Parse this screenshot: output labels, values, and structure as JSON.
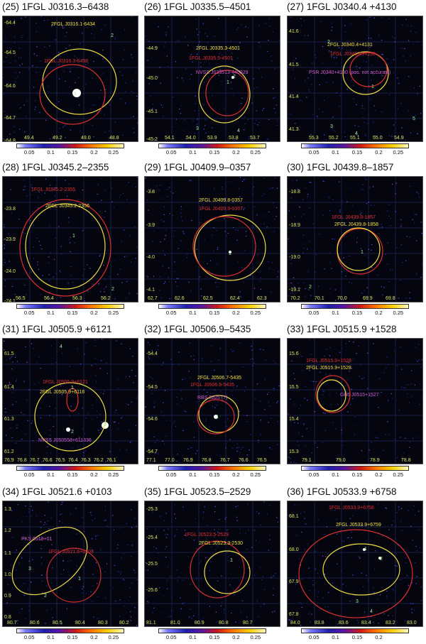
{
  "panels": [
    {
      "title": "(25) 1FGL J0316.3–6438",
      "labels": [
        {
          "text": "2FGL J0316.1-6434",
          "color": "#f0e040"
        },
        {
          "text": "1FGL J0316.3-6438",
          "color": "#e03030"
        }
      ],
      "y_ticks": [
        "-64.4",
        "-64.5",
        "-64.6",
        "-64.7",
        "-64.8"
      ],
      "x_ticks": [
        "49.4",
        "49.2",
        "49.0",
        "48.8"
      ],
      "scale_labels": [
        "0.05",
        "0.1",
        "0.15",
        "0.2",
        "0.25"
      ],
      "source_numbers": [
        "1",
        "2"
      ]
    },
    {
      "title": "(26) 1FGL J0335.5–4501",
      "labels": [
        {
          "text": "2FGL J0335.3-4501",
          "color": "#f0e040"
        },
        {
          "text": "1FGL J0335.5-4501",
          "color": "#e03030"
        },
        {
          "text": "NVSS J033513-445929",
          "color": "#d060d0"
        }
      ],
      "y_ticks": [
        "-44.9",
        "-45.0",
        "-45.1",
        "-45.2"
      ],
      "x_ticks": [
        "54.1",
        "54.0",
        "53.9",
        "53.8",
        "53.7"
      ],
      "scale_labels": [
        "0.05",
        "0.1",
        "0.15",
        "0.2",
        "0.25"
      ],
      "source_numbers": [
        "1",
        "2",
        "3",
        "4"
      ]
    },
    {
      "title": "(27) 1FGL J0340.4 +4130",
      "labels": [
        {
          "text": "2FGL J0340.4+4131",
          "color": "#f0e040"
        },
        {
          "text": "1FGL J0340.4+4130",
          "color": "#e03030"
        },
        {
          "text": "PSR J0340+4130 (pos. not accurate)",
          "color": "#d060d0"
        }
      ],
      "y_ticks": [
        "41.6",
        "41.5",
        "41.4",
        "41.3"
      ],
      "x_ticks": [
        "55.3",
        "55.2",
        "55.1",
        "55.0",
        "54.9"
      ],
      "scale_labels": [
        "0.05",
        "0.1",
        "0.15",
        "0.2",
        "0.25"
      ],
      "source_numbers": [
        "2",
        "1",
        "3",
        "4",
        "5"
      ]
    },
    {
      "title": "(28) 1FGL J0345.2–2355",
      "labels": [
        {
          "text": "1FGL J0345.2-2355",
          "color": "#e03030"
        },
        {
          "text": "2FGL J0345.2-2356",
          "color": "#f0e040"
        }
      ],
      "y_ticks": [
        "-23.8",
        "-23.9",
        "-24.0",
        "-24.1"
      ],
      "x_ticks": [
        "56.5",
        "56.4",
        "56.3",
        "56.2"
      ],
      "scale_labels": [
        "0.05",
        "0.1",
        "0.15",
        "0.2",
        "0.25"
      ],
      "source_numbers": [
        "1",
        "2"
      ]
    },
    {
      "title": "(29) 1FGL J0409.9–0357",
      "labels": [
        {
          "text": "2FGL J0409.8-0357",
          "color": "#f0e040"
        },
        {
          "text": "1FGL J0409.9-0357",
          "color": "#e03030"
        }
      ],
      "y_ticks": [
        "-3.8",
        "-3.9",
        "-4.0",
        "-4.1"
      ],
      "x_ticks": [
        "62.7",
        "62.6",
        "62.5",
        "62.4",
        "62.3"
      ],
      "scale_labels": [
        "0.05",
        "0.1",
        "0.15",
        "0.2",
        "0.25"
      ],
      "source_numbers": [
        "1"
      ]
    },
    {
      "title": "(30) 1FGL J0439.8–1857",
      "labels": [
        {
          "text": "1FGL J0439.8-1857",
          "color": "#e03030"
        },
        {
          "text": "2FGL J0439.8-1858",
          "color": "#f0e040"
        }
      ],
      "y_ticks": [
        "-18.8",
        "-18.9",
        "-19.0",
        "-19.1"
      ],
      "x_ticks": [
        "70.2",
        "70.1",
        "70.0",
        "69.9",
        "69.8"
      ],
      "scale_labels": [
        "0.05",
        "0.1",
        "0.15",
        "0.2",
        "0.25"
      ],
      "source_numbers": [
        "1",
        "2"
      ]
    },
    {
      "title": "(31) 1FGL J0505.9 +6121",
      "labels": [
        {
          "text": "1FGL J0505.9+6121",
          "color": "#e03030"
        },
        {
          "text": "2FGL J0505.9+6116",
          "color": "#f0e040"
        },
        {
          "text": "NVSS J050558+611336",
          "color": "#d060d0"
        }
      ],
      "y_ticks": [
        "61.5",
        "61.4",
        "61.3",
        "61.2"
      ],
      "x_ticks": [
        "76.9",
        "76.8",
        "76.7",
        "76.6",
        "76.5",
        "76.4",
        "76.3",
        "76.2",
        "76.1"
      ],
      "scale_labels": [
        "0.05",
        "0.1",
        "0.15",
        "0.2",
        "0.25"
      ],
      "source_numbers": [
        "4",
        "1",
        "2",
        "3"
      ]
    },
    {
      "title": "(32) 1FGL J0506.9–5435",
      "labels": [
        {
          "text": "2FGL J0506.7-5435",
          "color": "#f0e040"
        },
        {
          "text": "1FGL J0506.9-5435",
          "color": "#e03030"
        },
        {
          "text": "RBS 0625 (?)",
          "color": "#d060d0"
        }
      ],
      "y_ticks": [
        "-54.4",
        "-54.5",
        "-54.6",
        "-54.7"
      ],
      "x_ticks": [
        "77.1",
        "77.0",
        "76.9",
        "76.8",
        "76.7",
        "76.6",
        "76.5"
      ],
      "scale_labels": [
        "0.05",
        "0.1",
        "0.15",
        "0.2",
        "0.25"
      ],
      "source_numbers": [
        "1"
      ]
    },
    {
      "title": "(33) 1FGL J0515.9 +1528",
      "labels": [
        {
          "text": "1FGL J0515.9+1528",
          "color": "#e03030"
        },
        {
          "text": "2FGL J0515.9+1528",
          "color": "#f0e040"
        },
        {
          "text": "GB6 J0515+1527",
          "color": "#d060d0"
        }
      ],
      "y_ticks": [
        "15.6",
        "15.5",
        "15.4",
        "15.3"
      ],
      "x_ticks": [
        "79.1",
        "79.0",
        "78.9",
        "78.8"
      ],
      "scale_labels": [
        "0.05",
        "0.1",
        "0.15",
        "0.2",
        "0.25"
      ],
      "source_numbers": []
    },
    {
      "title": "(34) 1FGL J0521.6 +0103",
      "labels": [
        {
          "text": "PKS 0519+01",
          "color": "#d060d0"
        },
        {
          "text": "1FGL J0521.6+0103",
          "color": "#e03030"
        }
      ],
      "y_ticks": [
        "1.3",
        "1.2",
        "1.1",
        "1.0",
        "0.9",
        "0.8"
      ],
      "x_ticks": [
        "80.7",
        "80.6",
        "80.5",
        "80.4",
        "80.3",
        "80.2"
      ],
      "scale_labels": [
        "0.05",
        "0.1",
        "0.15",
        "0.2",
        "0.25"
      ],
      "source_numbers": [
        "3",
        "1",
        "2"
      ]
    },
    {
      "title": "(35) 1FGL J0523.5–2529",
      "labels": [
        {
          "text": "1FGL J0523.5-2529",
          "color": "#e03030"
        },
        {
          "text": "2FGL J0523.3-2530",
          "color": "#f0e040"
        }
      ],
      "y_ticks": [
        "-25.3",
        "-25.4",
        "-25.5",
        "-25.6"
      ],
      "x_ticks": [
        "81.1",
        "81.0",
        "80.9",
        "80.8",
        "80.7"
      ],
      "scale_labels": [
        "0.05",
        "0.1",
        "0.15",
        "0.2",
        "0.25"
      ],
      "source_numbers": [
        "1"
      ]
    },
    {
      "title": "(36) 1FGL J0533.9 +6758",
      "labels": [
        {
          "text": "1FGL J0533.9+6758",
          "color": "#e03030"
        },
        {
          "text": "2FGL J0533.9+6759",
          "color": "#f0e040"
        }
      ],
      "y_ticks": [
        "68.1",
        "68.0",
        "67.9",
        "67.8"
      ],
      "x_ticks": [
        "84.0",
        "83.8",
        "83.6",
        "83.4",
        "83.2",
        "83.0"
      ],
      "scale_labels": [
        "0.05",
        "0.1",
        "0.15",
        "0.2"
      ],
      "source_numbers": [
        "1",
        "2",
        "3",
        "4"
      ]
    }
  ]
}
